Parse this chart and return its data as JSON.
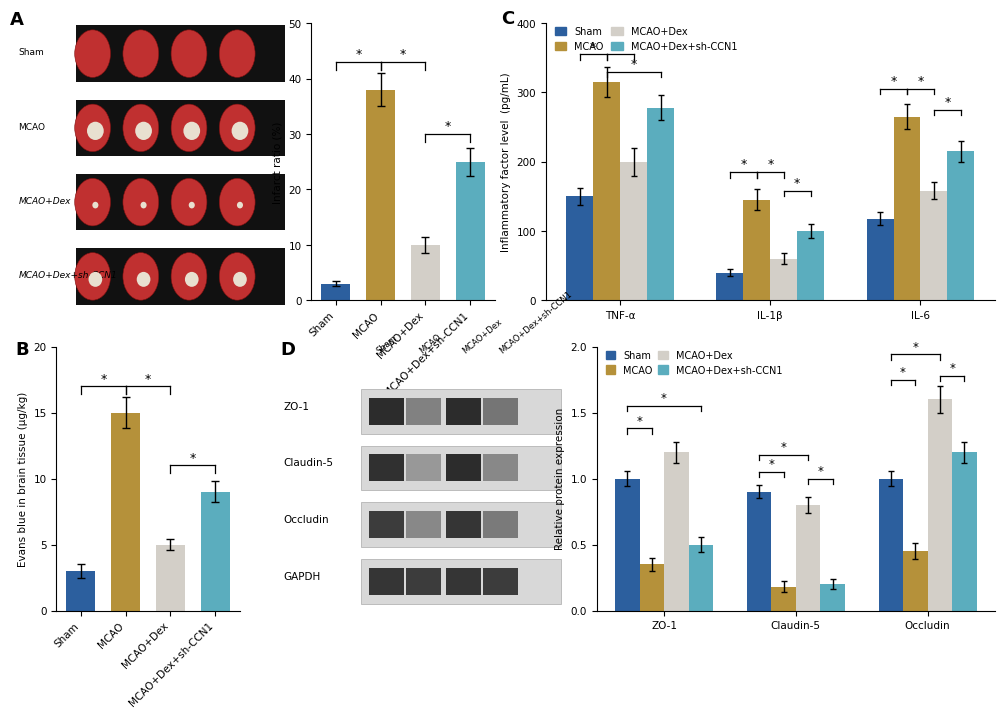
{
  "panel_A_bar": {
    "categories": [
      "Sham",
      "MCAO",
      "MCAO+Dex",
      "MCAO+Dex+sh-CCN1"
    ],
    "values": [
      3.0,
      38.0,
      10.0,
      25.0
    ],
    "errors": [
      0.5,
      3.0,
      1.5,
      2.5
    ],
    "colors": [
      "#2c5f9e",
      "#b5913a",
      "#d3cfc8",
      "#5badbe"
    ],
    "ylabel": "Infarct ratio (%)",
    "ylim": [
      0,
      50
    ],
    "yticks": [
      0,
      10,
      20,
      30,
      40,
      50
    ]
  },
  "panel_B_bar": {
    "categories": [
      "Sham",
      "MCAO",
      "MCAO+Dex",
      "MCAO+Dex+sh-CCN1"
    ],
    "values": [
      3.0,
      15.0,
      5.0,
      9.0
    ],
    "errors": [
      0.5,
      1.2,
      0.4,
      0.8
    ],
    "colors": [
      "#2c5f9e",
      "#b5913a",
      "#d3cfc8",
      "#5badbe"
    ],
    "ylabel": "Evans blue in brain tissue (μg/kg)",
    "ylim": [
      0,
      20
    ],
    "yticks": [
      0,
      5,
      10,
      15,
      20
    ]
  },
  "panel_C_bar": {
    "groups": [
      "TNF-α",
      "IL-1β",
      "IL-6"
    ],
    "series": [
      "Sham",
      "MCAO",
      "MCAO+Dex",
      "MCAO+Dex+sh-CCN1"
    ],
    "values": [
      [
        150,
        315,
        200,
        278
      ],
      [
        40,
        145,
        60,
        100
      ],
      [
        118,
        265,
        158,
        215
      ]
    ],
    "errors": [
      [
        12,
        22,
        20,
        18
      ],
      [
        5,
        15,
        8,
        10
      ],
      [
        10,
        18,
        12,
        15
      ]
    ],
    "colors": [
      "#2c5f9e",
      "#b5913a",
      "#d3cfc8",
      "#5badbe"
    ],
    "ylabel": "Inflammatory factor level  (pg/mL)",
    "ylim": [
      0,
      400
    ],
    "yticks": [
      0,
      100,
      200,
      300,
      400
    ]
  },
  "panel_D_bar": {
    "groups": [
      "ZO-1",
      "Claudin-5",
      "Occludin"
    ],
    "series": [
      "Sham",
      "MCAO",
      "MCAO+Dex",
      "MCAO+Dex+sh-CCN1"
    ],
    "values": [
      [
        1.0,
        0.35,
        1.2,
        0.5
      ],
      [
        0.9,
        0.18,
        0.8,
        0.2
      ],
      [
        1.0,
        0.45,
        1.6,
        1.2
      ]
    ],
    "errors": [
      [
        0.06,
        0.05,
        0.08,
        0.06
      ],
      [
        0.05,
        0.04,
        0.06,
        0.04
      ],
      [
        0.06,
        0.06,
        0.1,
        0.08
      ]
    ],
    "colors": [
      "#2c5f9e",
      "#b5913a",
      "#d3cfc8",
      "#5badbe"
    ],
    "ylabel": "Relative protein expression",
    "ylim": [
      0,
      2.0
    ],
    "yticks": [
      0.0,
      0.5,
      1.0,
      1.5,
      2.0
    ]
  },
  "colors": [
    "#2c5f9e",
    "#b5913a",
    "#d3cfc8",
    "#5badbe"
  ],
  "series": [
    "Sham",
    "MCAO",
    "MCAO+Dex",
    "MCAO+Dex+sh-CCN1"
  ]
}
